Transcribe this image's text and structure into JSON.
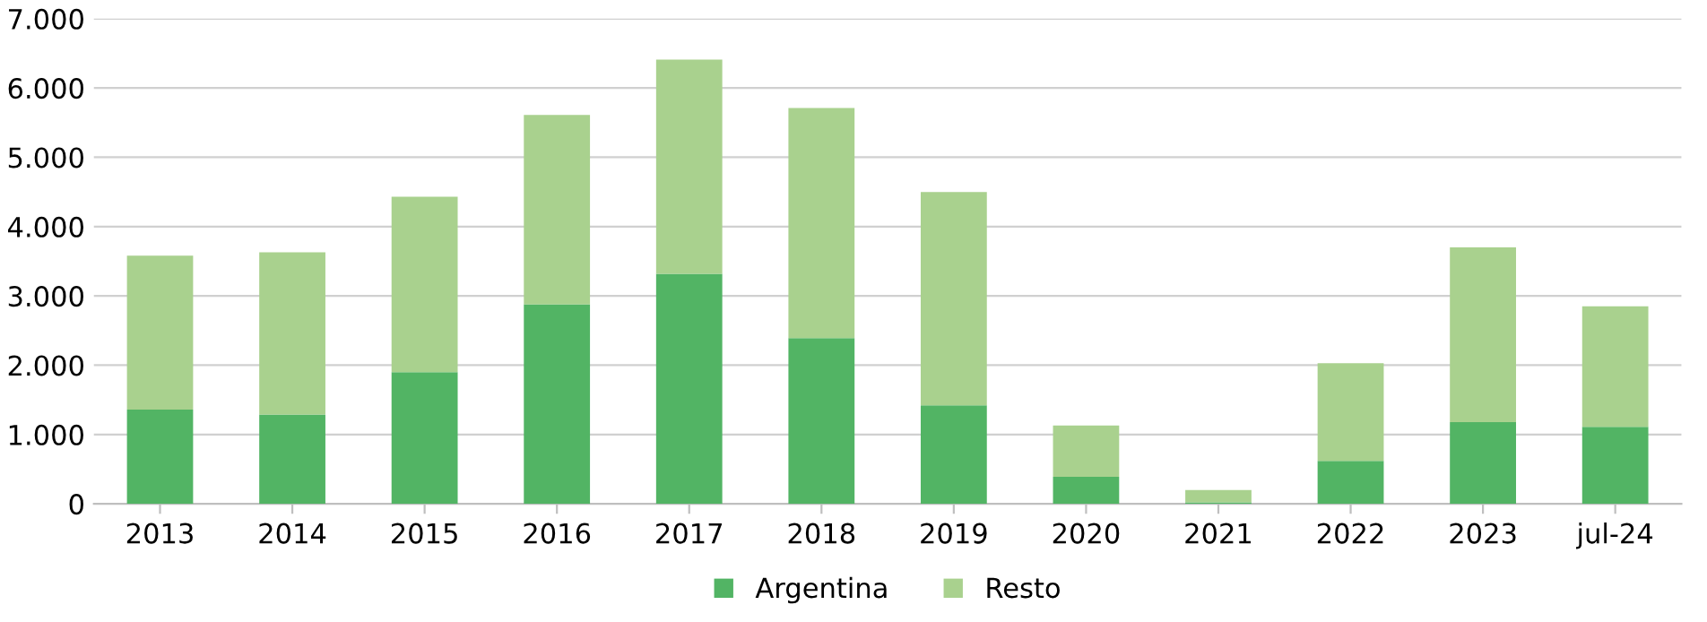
{
  "chart_data": {
    "type": "bar",
    "stacked": true,
    "categories": [
      "2013",
      "2014",
      "2015",
      "2016",
      "2017",
      "2018",
      "2019",
      "2020",
      "2021",
      "2022",
      "2023",
      "jul-24"
    ],
    "series": [
      {
        "name": "Argentina",
        "color": "#52b464",
        "values": [
          1360,
          1290,
          1900,
          2880,
          3320,
          2390,
          1420,
          390,
          20,
          620,
          1180,
          1110
        ]
      },
      {
        "name": "Resto",
        "color": "#a9d18e",
        "values": [
          2220,
          2340,
          2530,
          2730,
          3090,
          3320,
          3080,
          740,
          180,
          1410,
          2520,
          1740
        ]
      }
    ],
    "ylim": [
      0,
      7000
    ],
    "yticks": [
      0,
      {
        "value": 1000,
        "label": "1.000"
      },
      {
        "value": 2000,
        "label": "2.000"
      },
      {
        "value": 3000,
        "label": "3.000"
      },
      {
        "value": 4000,
        "label": "4.000"
      },
      {
        "value": 5000,
        "label": "5.000"
      },
      {
        "value": 6000,
        "label": "6.000"
      },
      {
        "value": 7000,
        "label": "7.000"
      }
    ],
    "grid": "y",
    "legend": "bottom"
  }
}
